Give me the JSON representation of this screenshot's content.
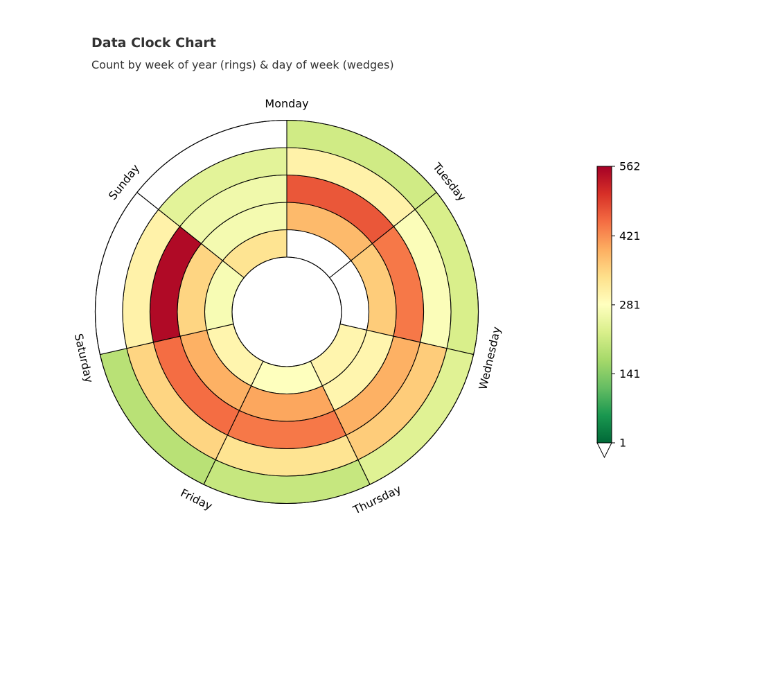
{
  "chart_data": {
    "type": "heatmap",
    "title": "Data Clock Chart",
    "subtitle": "Count by week of year (rings) & day of week (wedges)",
    "days": [
      "Monday",
      "Tuesday",
      "Wednesday",
      "Thursday",
      "Friday",
      "Saturday",
      "Sunday"
    ],
    "rings": [
      {
        "values": [
          null,
          null,
          300,
          280,
          300,
          270,
          330
        ]
      },
      {
        "values": [
          380,
          360,
          300,
          400,
          390,
          350,
          265
        ]
      },
      {
        "values": [
          470,
          440,
          390,
          440,
          450,
          550,
          260
        ]
      },
      {
        "values": [
          305,
          275,
          360,
          330,
          350,
          305,
          240
        ]
      },
      {
        "values": [
          215,
          225,
          235,
          205,
          190,
          null,
          null
        ]
      }
    ],
    "colorbar": {
      "colormap": "RdYlGn_r",
      "min": 1,
      "max": 562,
      "ticks": [
        "1",
        "141",
        "281",
        "421",
        "562"
      ],
      "extend": "min"
    }
  }
}
